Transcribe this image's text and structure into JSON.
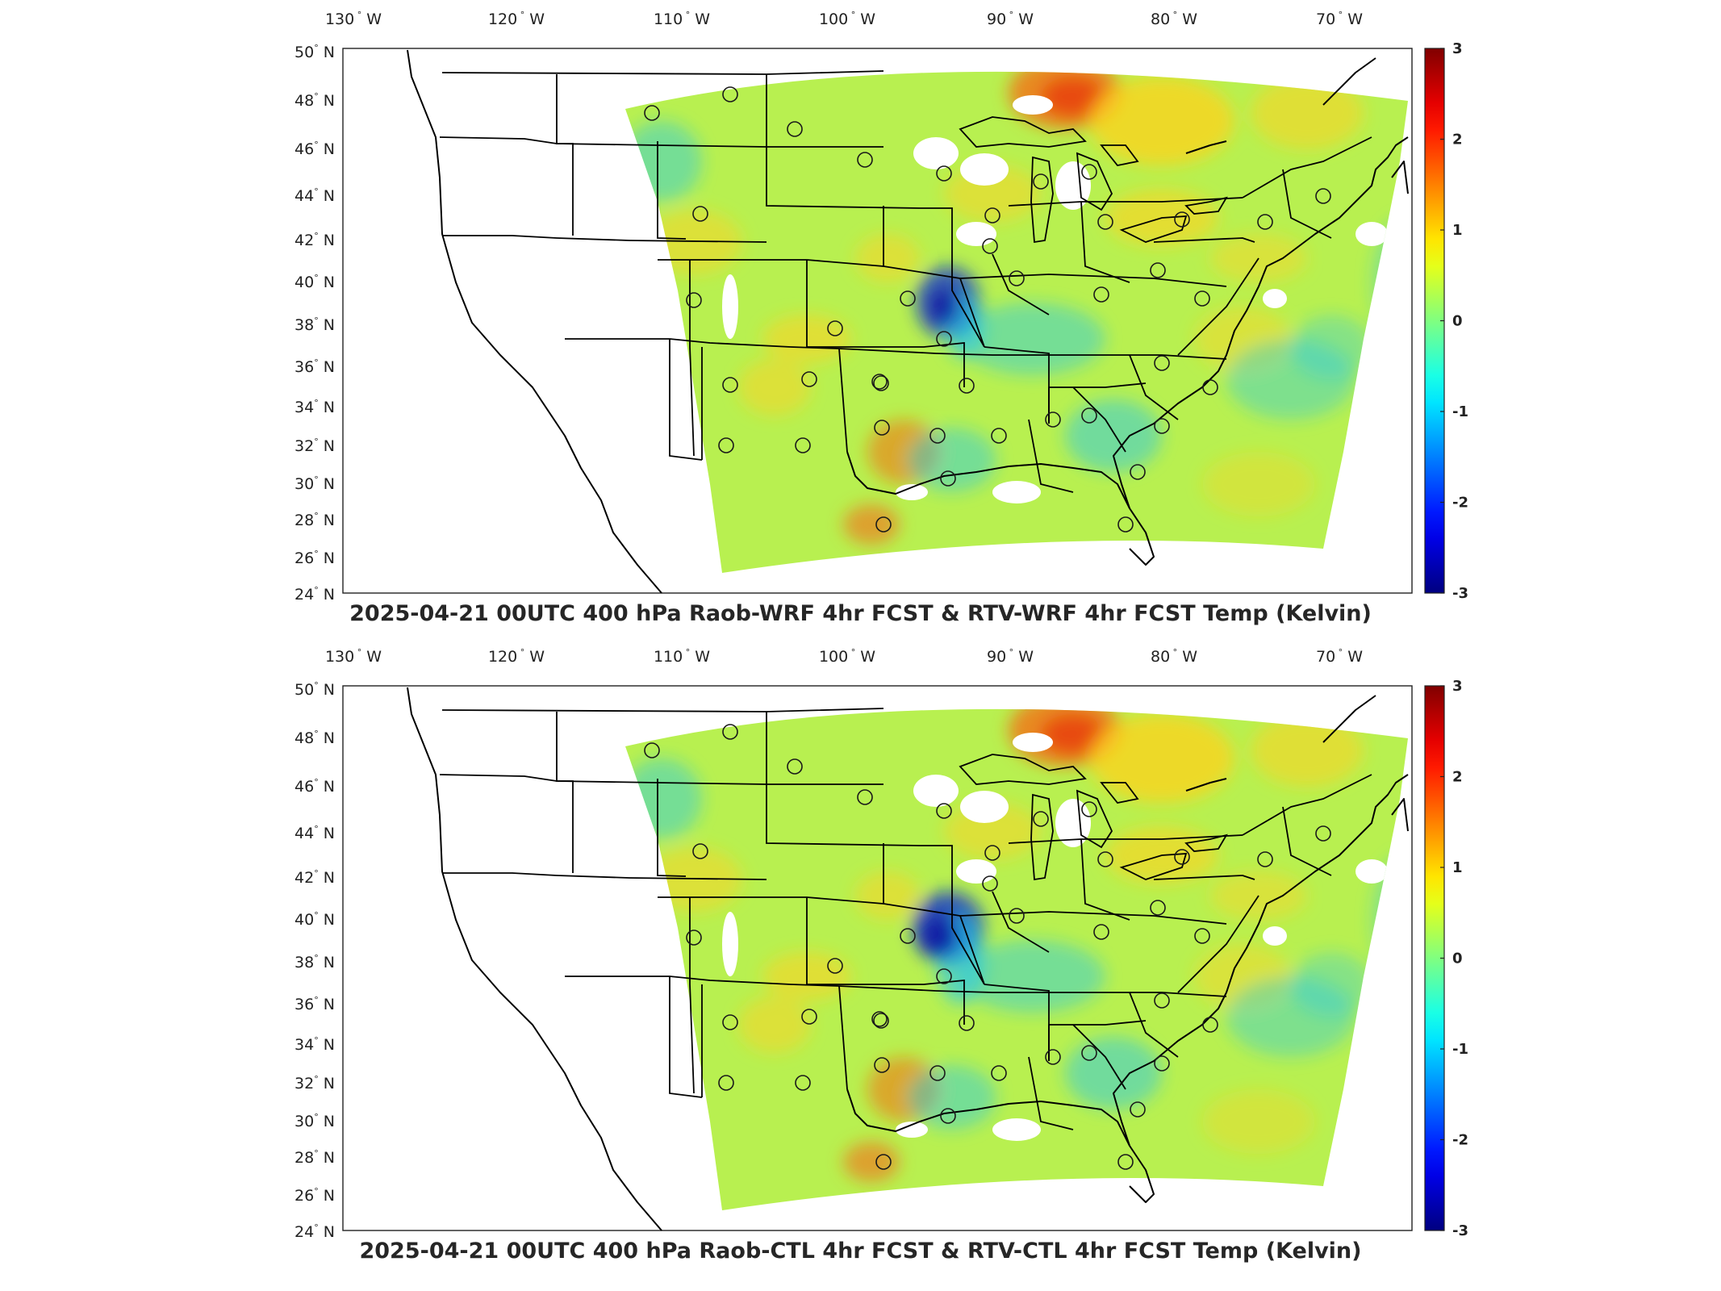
{
  "figure": {
    "colorbar": {
      "min": -3,
      "max": 3,
      "ticks": [
        "3",
        "2",
        "1",
        "0",
        "-1",
        "-2",
        "-3"
      ],
      "colormap": "jet"
    },
    "lon_labels": [
      "130",
      "120",
      "110",
      "100",
      "90",
      "80",
      "70"
    ],
    "lat_labels": [
      "50",
      "48",
      "46",
      "44",
      "42",
      "40",
      "38",
      "36",
      "34",
      "32",
      "30",
      "28",
      "26",
      "24"
    ],
    "lon_suffix": "W",
    "lat_suffix": "N",
    "degree_symbol": "°"
  },
  "panels": [
    {
      "title": "2025-04-21 00UTC 400 hPa Raob-WRF 4hr FCST & RTV-WRF 4hr FCST Temp (Kelvin)",
      "variant": "wrf"
    },
    {
      "title": "2025-04-21 00UTC 400 hPa Raob-CTL 4hr FCST & RTV-CTL 4hr FCST Temp (Kelvin)",
      "variant": "ctl"
    }
  ],
  "colors": {
    "field_base": "#b8f050",
    "warm": "#ffd21e",
    "hot": "#f07818",
    "cool": "#28c8e8",
    "cold": "#1030d0",
    "frame": "#222222"
  }
}
